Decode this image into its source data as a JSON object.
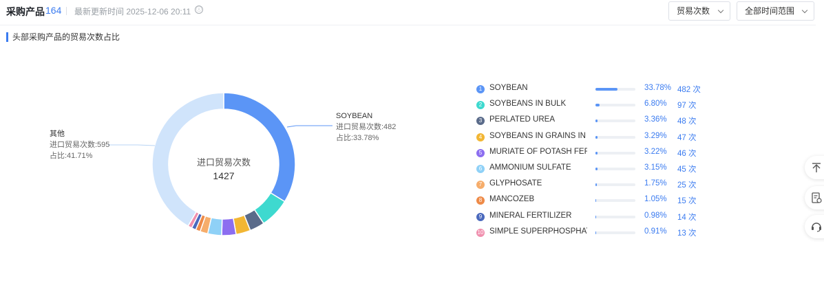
{
  "header": {
    "title": "采购产品",
    "count": "164",
    "updated": "最新更新时间 2025-12-06 20:11",
    "info_icon": "ⓘ",
    "dropdown_metric": "贸易次数",
    "dropdown_range": "全部时间范围"
  },
  "section_title": "头部采购产品的贸易次数占比",
  "chart_data": {
    "type": "pie",
    "style": "donut",
    "center_label": "进口贸易次数",
    "center_value": "1427",
    "total": 1427,
    "slices": [
      {
        "name": "SOYBEAN",
        "value": 482,
        "percent": 33.78,
        "color": "#5b95f6"
      },
      {
        "name": "SOYBEANS IN BULK",
        "value": 97,
        "percent": 6.8,
        "color": "#3ed9cf"
      },
      {
        "name": "PERLATED UREA",
        "value": 48,
        "percent": 3.36,
        "color": "#5a6b8a"
      },
      {
        "name": "SOYBEANS IN GRAINS IN B...",
        "value": 47,
        "percent": 3.29,
        "color": "#f2b634"
      },
      {
        "name": "MURIATE OF POTASH FERTI...",
        "value": 46,
        "percent": 3.22,
        "color": "#8c6ef0"
      },
      {
        "name": "AMMONIUM SULFATE",
        "value": 45,
        "percent": 3.15,
        "color": "#8fd1f7"
      },
      {
        "name": "GLYPHOSATE",
        "value": 25,
        "percent": 1.75,
        "color": "#f6ad6b"
      },
      {
        "name": "MANCOZEB",
        "value": 15,
        "percent": 1.05,
        "color": "#ee8a47"
      },
      {
        "name": "MINERAL FERTILIZER",
        "value": 14,
        "percent": 0.98,
        "color": "#4a69bd"
      },
      {
        "name": "SIMPLE SUPERPHOSPHATE ...",
        "value": 13,
        "percent": 0.91,
        "color": "#f08fae"
      },
      {
        "name": "其他",
        "value": 595,
        "percent": 41.71,
        "color": "#d0e4fb"
      }
    ],
    "annotations": {
      "soybean": {
        "name": "SOYBEAN",
        "line1": "进口贸易次数:482",
        "line2": "占比:33.78%"
      },
      "other": {
        "name": "其他",
        "line1": "进口贸易次数:595",
        "line2": "占比:41.71%"
      }
    }
  },
  "legend": [
    {
      "rank": "1",
      "name": "SOYBEAN",
      "pct": "33.78%",
      "count": "482 次",
      "share": 0.3378,
      "color": "#5b95f6"
    },
    {
      "rank": "2",
      "name": "SOYBEANS IN BULK",
      "pct": "6.80%",
      "count": "97 次",
      "share": 0.068,
      "color": "#3ed9cf"
    },
    {
      "rank": "3",
      "name": "PERLATED UREA",
      "pct": "3.36%",
      "count": "48 次",
      "share": 0.0336,
      "color": "#5a6b8a"
    },
    {
      "rank": "4",
      "name": "SOYBEANS IN GRAINS IN B...",
      "pct": "3.29%",
      "count": "47 次",
      "share": 0.0329,
      "color": "#f2b634"
    },
    {
      "rank": "5",
      "name": "MURIATE OF POTASH FERTI...",
      "pct": "3.22%",
      "count": "46 次",
      "share": 0.0322,
      "color": "#8c6ef0"
    },
    {
      "rank": "6",
      "name": "AMMONIUM SULFATE",
      "pct": "3.15%",
      "count": "45 次",
      "share": 0.0315,
      "color": "#8fd1f7"
    },
    {
      "rank": "7",
      "name": "GLYPHOSATE",
      "pct": "1.75%",
      "count": "25 次",
      "share": 0.0175,
      "color": "#f6ad6b"
    },
    {
      "rank": "8",
      "name": "MANCOZEB",
      "pct": "1.05%",
      "count": "15 次",
      "share": 0.0105,
      "color": "#ee8a47"
    },
    {
      "rank": "9",
      "name": "MINERAL FERTILIZER",
      "pct": "0.98%",
      "count": "14 次",
      "share": 0.0098,
      "color": "#4a69bd"
    },
    {
      "rank": "10",
      "name": "SIMPLE SUPERPHOSPHATE ...",
      "pct": "0.91%",
      "count": "13 次",
      "share": 0.0091,
      "color": "#f08fae"
    }
  ],
  "side_toolbar": {
    "icons": [
      "back-to-top-icon",
      "document-settings-icon",
      "customer-service-icon"
    ]
  }
}
